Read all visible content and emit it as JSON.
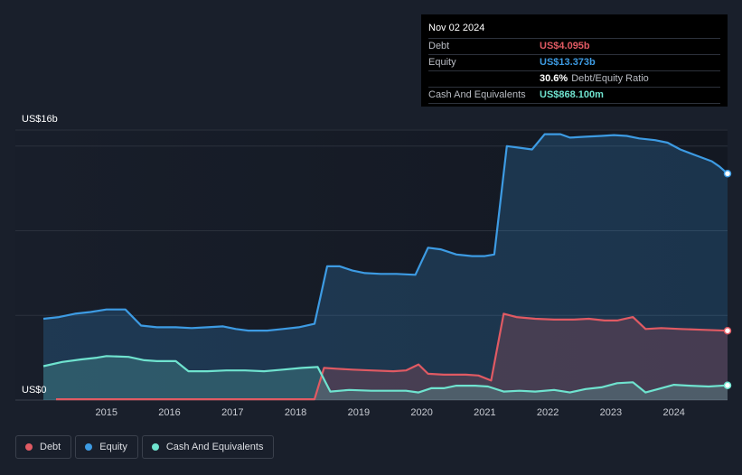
{
  "tooltip": {
    "date": "Nov 02 2024",
    "rows": [
      {
        "label": "Debt",
        "value": "US$4.095b",
        "color": "#e05a63"
      },
      {
        "label": "Equity",
        "value": "US$13.373b",
        "color": "#3d9be3"
      },
      {
        "label": "",
        "value": "30.6%",
        "suffix": "Debt/Equity Ratio",
        "color": "#ffffff"
      },
      {
        "label": "Cash And Equivalents",
        "value": "US$868.100m",
        "color": "#6fe3cf"
      }
    ]
  },
  "legend": [
    {
      "label": "Debt",
      "color": "#e05a63"
    },
    {
      "label": "Equity",
      "color": "#3d9be3"
    },
    {
      "label": "Cash And Equivalents",
      "color": "#6fe3cf"
    }
  ],
  "chart_data": {
    "type": "area",
    "ylabel_top": "US$16b",
    "ylabel_bottom": "US$0",
    "ylim": [
      0,
      16
    ],
    "xlim": [
      2014.0,
      2024.85
    ],
    "x_ticks": [
      2015,
      2016,
      2017,
      2018,
      2019,
      2020,
      2021,
      2022,
      2023,
      2024
    ],
    "grid": true,
    "series": [
      {
        "name": "Equity",
        "color": "#3d9be3",
        "points": [
          [
            2014.0,
            4.8
          ],
          [
            2014.25,
            4.9
          ],
          [
            2014.5,
            5.1
          ],
          [
            2014.75,
            5.2
          ],
          [
            2015.0,
            5.35
          ],
          [
            2015.3,
            5.35
          ],
          [
            2015.55,
            4.4
          ],
          [
            2015.8,
            4.3
          ],
          [
            2016.1,
            4.3
          ],
          [
            2016.35,
            4.25
          ],
          [
            2016.6,
            4.3
          ],
          [
            2016.85,
            4.35
          ],
          [
            2017.05,
            4.2
          ],
          [
            2017.25,
            4.1
          ],
          [
            2017.55,
            4.1
          ],
          [
            2017.8,
            4.2
          ],
          [
            2018.05,
            4.3
          ],
          [
            2018.3,
            4.5
          ],
          [
            2018.5,
            7.9
          ],
          [
            2018.7,
            7.9
          ],
          [
            2018.9,
            7.65
          ],
          [
            2019.1,
            7.5
          ],
          [
            2019.35,
            7.45
          ],
          [
            2019.6,
            7.45
          ],
          [
            2019.9,
            7.4
          ],
          [
            2020.1,
            9.0
          ],
          [
            2020.3,
            8.9
          ],
          [
            2020.55,
            8.6
          ],
          [
            2020.8,
            8.5
          ],
          [
            2021.0,
            8.5
          ],
          [
            2021.15,
            8.6
          ],
          [
            2021.35,
            15.0
          ],
          [
            2021.55,
            14.9
          ],
          [
            2021.75,
            14.8
          ],
          [
            2021.95,
            15.7
          ],
          [
            2022.2,
            15.7
          ],
          [
            2022.35,
            15.5
          ],
          [
            2022.6,
            15.55
          ],
          [
            2022.85,
            15.6
          ],
          [
            2023.05,
            15.65
          ],
          [
            2023.25,
            15.6
          ],
          [
            2023.45,
            15.45
          ],
          [
            2023.7,
            15.35
          ],
          [
            2023.9,
            15.2
          ],
          [
            2024.1,
            14.8
          ],
          [
            2024.35,
            14.45
          ],
          [
            2024.6,
            14.1
          ],
          [
            2024.72,
            13.8
          ],
          [
            2024.85,
            13.373
          ]
        ]
      },
      {
        "name": "Debt",
        "color": "#e05a63",
        "points": [
          [
            2014.2,
            0.05
          ],
          [
            2018.3,
            0.05
          ],
          [
            2018.45,
            1.9
          ],
          [
            2018.65,
            1.85
          ],
          [
            2018.9,
            1.8
          ],
          [
            2019.2,
            1.75
          ],
          [
            2019.55,
            1.7
          ],
          [
            2019.75,
            1.75
          ],
          [
            2019.95,
            2.1
          ],
          [
            2020.1,
            1.55
          ],
          [
            2020.35,
            1.5
          ],
          [
            2020.7,
            1.5
          ],
          [
            2020.9,
            1.45
          ],
          [
            2021.1,
            1.15
          ],
          [
            2021.3,
            5.1
          ],
          [
            2021.5,
            4.9
          ],
          [
            2021.8,
            4.8
          ],
          [
            2022.1,
            4.75
          ],
          [
            2022.4,
            4.75
          ],
          [
            2022.65,
            4.8
          ],
          [
            2022.9,
            4.7
          ],
          [
            2023.1,
            4.7
          ],
          [
            2023.35,
            4.9
          ],
          [
            2023.55,
            4.2
          ],
          [
            2023.8,
            4.25
          ],
          [
            2024.1,
            4.2
          ],
          [
            2024.45,
            4.15
          ],
          [
            2024.85,
            4.095
          ]
        ]
      },
      {
        "name": "Cash And Equivalents",
        "color": "#6fe3cf",
        "points": [
          [
            2014.0,
            2.0
          ],
          [
            2014.3,
            2.25
          ],
          [
            2014.6,
            2.4
          ],
          [
            2014.85,
            2.5
          ],
          [
            2015.0,
            2.6
          ],
          [
            2015.35,
            2.55
          ],
          [
            2015.6,
            2.35
          ],
          [
            2015.8,
            2.3
          ],
          [
            2016.1,
            2.3
          ],
          [
            2016.3,
            1.7
          ],
          [
            2016.6,
            1.7
          ],
          [
            2016.9,
            1.75
          ],
          [
            2017.2,
            1.75
          ],
          [
            2017.5,
            1.7
          ],
          [
            2017.8,
            1.8
          ],
          [
            2018.1,
            1.9
          ],
          [
            2018.35,
            1.95
          ],
          [
            2018.55,
            0.5
          ],
          [
            2018.85,
            0.6
          ],
          [
            2019.2,
            0.55
          ],
          [
            2019.5,
            0.55
          ],
          [
            2019.75,
            0.55
          ],
          [
            2019.95,
            0.45
          ],
          [
            2020.15,
            0.7
          ],
          [
            2020.35,
            0.7
          ],
          [
            2020.55,
            0.85
          ],
          [
            2020.85,
            0.85
          ],
          [
            2021.05,
            0.8
          ],
          [
            2021.3,
            0.5
          ],
          [
            2021.55,
            0.55
          ],
          [
            2021.8,
            0.5
          ],
          [
            2022.1,
            0.6
          ],
          [
            2022.35,
            0.45
          ],
          [
            2022.6,
            0.65
          ],
          [
            2022.85,
            0.75
          ],
          [
            2023.1,
            1.0
          ],
          [
            2023.35,
            1.05
          ],
          [
            2023.55,
            0.45
          ],
          [
            2023.75,
            0.65
          ],
          [
            2024.0,
            0.9
          ],
          [
            2024.25,
            0.85
          ],
          [
            2024.55,
            0.8
          ],
          [
            2024.85,
            0.868
          ]
        ]
      }
    ]
  }
}
